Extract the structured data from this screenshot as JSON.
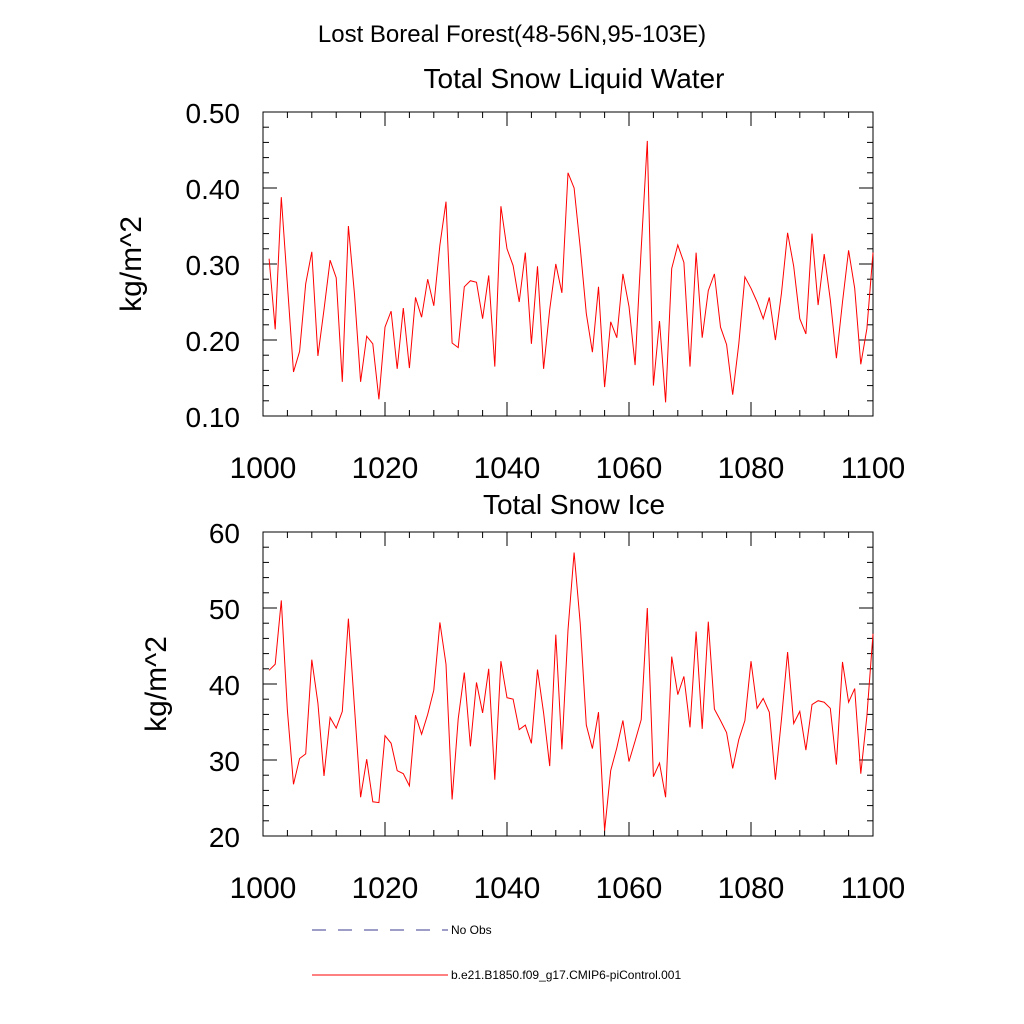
{
  "figure": {
    "suptitle": "Lost Boreal Forest(48-56N,95-103E)"
  },
  "legend": {
    "entries": [
      {
        "label": "No Obs",
        "color": "#3b3b8f",
        "style": "dashed"
      },
      {
        "label": "b.e21.B1850.f09_g17.CMIP6-piControl.001",
        "color": "#ff0000",
        "style": "solid"
      }
    ]
  },
  "chart_data": [
    {
      "type": "line",
      "title": "Total Snow Liquid Water",
      "xlabel": "",
      "ylabel": "kg/m^2",
      "xlim": [
        1000,
        1100
      ],
      "ylim": [
        0.1,
        0.5
      ],
      "xticks": [
        1000,
        1020,
        1040,
        1060,
        1080,
        1100
      ],
      "xtick_labels": [
        "1000",
        "1020",
        "1040",
        "1060",
        "1080",
        "1100"
      ],
      "yticks": [
        0.1,
        0.2,
        0.3,
        0.4,
        0.5
      ],
      "ytick_labels": [
        "0.10",
        "0.20",
        "0.30",
        "0.40",
        "0.50"
      ],
      "grid": false,
      "x_start": 1001,
      "series": [
        {
          "name": "b.e21.B1850.f09_g17.CMIP6-piControl.001",
          "color": "#ff0000",
          "values": [
            0.307,
            0.214,
            0.388,
            0.273,
            0.158,
            0.185,
            0.274,
            0.316,
            0.179,
            0.24,
            0.305,
            0.282,
            0.145,
            0.35,
            0.26,
            0.145,
            0.205,
            0.195,
            0.122,
            0.217,
            0.238,
            0.162,
            0.242,
            0.163,
            0.256,
            0.23,
            0.28,
            0.245,
            0.325,
            0.382,
            0.196,
            0.19,
            0.27,
            0.278,
            0.276,
            0.228,
            0.285,
            0.165,
            0.376,
            0.32,
            0.298,
            0.25,
            0.315,
            0.195,
            0.297,
            0.162,
            0.24,
            0.3,
            0.262,
            0.42,
            0.4,
            0.322,
            0.235,
            0.184,
            0.27,
            0.138,
            0.224,
            0.203,
            0.287,
            0.244,
            0.167,
            0.32,
            0.462,
            0.14,
            0.225,
            0.118,
            0.294,
            0.325,
            0.302,
            0.165,
            0.315,
            0.203,
            0.265,
            0.287,
            0.217,
            0.194,
            0.128,
            0.195,
            0.283,
            0.268,
            0.25,
            0.228,
            0.256,
            0.2,
            0.262,
            0.341,
            0.297,
            0.228,
            0.208,
            0.34,
            0.246,
            0.313,
            0.253,
            0.176,
            0.25,
            0.318,
            0.268,
            0.168,
            0.215,
            0.315
          ]
        }
      ]
    },
    {
      "type": "line",
      "title": "Total Snow Ice",
      "xlabel": "",
      "ylabel": "kg/m^2",
      "xlim": [
        1000,
        1100
      ],
      "ylim": [
        20,
        60
      ],
      "xticks": [
        1000,
        1020,
        1040,
        1060,
        1080,
        1100
      ],
      "xtick_labels": [
        "1000",
        "1020",
        "1040",
        "1060",
        "1080",
        "1100"
      ],
      "yticks": [
        20,
        30,
        40,
        50,
        60
      ],
      "ytick_labels": [
        "20",
        "30",
        "40",
        "50",
        "60"
      ],
      "grid": false,
      "x_start": 1001,
      "series": [
        {
          "name": "b.e21.B1850.f09_g17.CMIP6-piControl.001",
          "color": "#ff0000",
          "values": [
            41.8,
            42.6,
            51.0,
            36.5,
            26.8,
            30.2,
            30.8,
            43.2,
            37.5,
            27.9,
            35.6,
            34.2,
            36.4,
            48.6,
            36.9,
            25.1,
            30.1,
            24.5,
            24.4,
            33.2,
            32.2,
            28.6,
            28.2,
            26.6,
            35.9,
            33.4,
            36.0,
            39.2,
            48.1,
            42.6,
            24.8,
            35.4,
            41.5,
            31.8,
            40.2,
            36.2,
            42.0,
            27.4,
            43.0,
            38.2,
            38.0,
            34.0,
            34.6,
            32.2,
            41.9,
            36.2,
            29.2,
            46.5,
            31.4,
            47.1,
            57.3,
            48.0,
            34.6,
            31.5,
            36.3,
            20.7,
            28.6,
            31.6,
            35.2,
            29.8,
            32.5,
            35.3,
            50.0,
            27.8,
            29.6,
            25.1,
            43.6,
            38.6,
            41.0,
            34.3,
            46.9,
            34.1,
            48.2,
            36.7,
            35.2,
            33.6,
            28.9,
            32.7,
            35.2,
            43.0,
            36.8,
            38.1,
            36.3,
            27.4,
            35.4,
            44.2,
            34.8,
            36.4,
            31.3,
            37.3,
            37.8,
            37.6,
            36.8,
            29.4,
            42.9,
            37.6,
            39.4,
            28.2,
            35.8,
            46.6
          ]
        }
      ]
    }
  ]
}
